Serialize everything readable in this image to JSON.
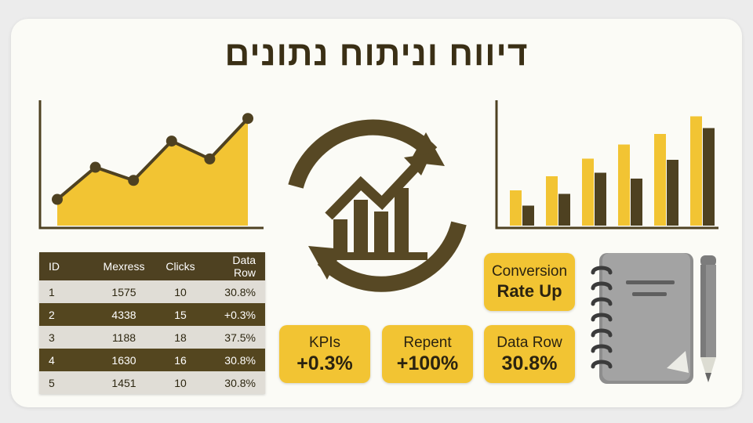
{
  "title": "דיווח וניתוח נתונים",
  "colors": {
    "accent": "#f2c433",
    "dark": "#4e4121",
    "panel": "#fbfbf6"
  },
  "icons": [
    "line-area-chart-icon",
    "refresh-growth-chart-icon",
    "bar-chart-icon",
    "notebook-icon",
    "pencil-icon"
  ],
  "table": {
    "headers": [
      "ID",
      "Mexress",
      "Clicks",
      "Data Row"
    ],
    "rows": [
      [
        "1",
        "1575",
        "10",
        "30.8%"
      ],
      [
        "2",
        "4338",
        "15",
        "+0.3%"
      ],
      [
        "3",
        "1188",
        "18",
        "37.5%"
      ],
      [
        "4",
        "1630",
        "16",
        "30.8%"
      ],
      [
        "5",
        "1451",
        "10",
        "30.8%"
      ]
    ]
  },
  "kpis": {
    "kpis": {
      "label": "KPIs",
      "value": "+0.3%"
    },
    "repent": {
      "label": "Repent",
      "value": "+100%"
    },
    "data_row": {
      "label": "Data Row",
      "value": "30.8%"
    },
    "conversion": {
      "line1": "Conversion",
      "line2": "Rate Up"
    }
  },
  "chart_data": [
    {
      "type": "area",
      "x": [
        1,
        2,
        3,
        4,
        5,
        6
      ],
      "values": [
        22,
        49,
        38,
        71,
        56,
        90
      ],
      "ylim": [
        0,
        100
      ]
    },
    {
      "type": "bar",
      "categories": [
        "1",
        "2",
        "3",
        "4",
        "5",
        "6"
      ],
      "series": [
        {
          "color": "#f2c433",
          "values": [
            30,
            42,
            57,
            69,
            78,
            93
          ]
        },
        {
          "color": "#4e4121",
          "values": [
            17,
            27,
            45,
            40,
            56,
            83
          ]
        }
      ],
      "ylim": [
        0,
        100
      ]
    }
  ]
}
